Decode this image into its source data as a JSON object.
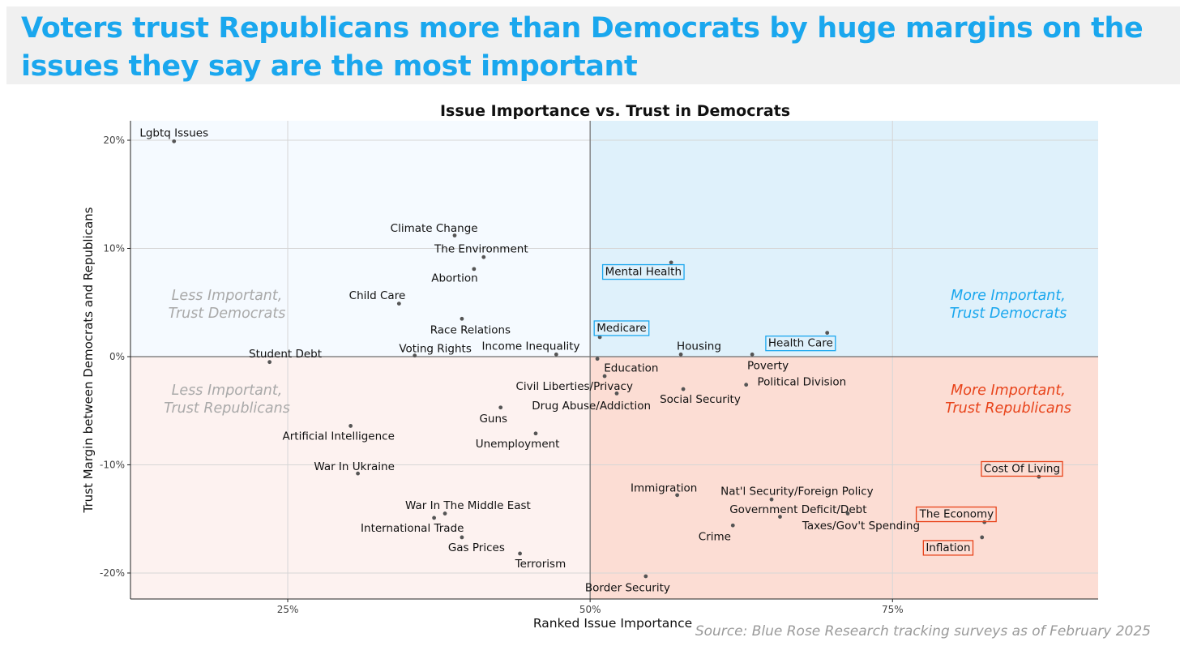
{
  "headline": "Voters trust Republicans more than Democrats by huge margins on the issues they say are the most important",
  "source": "Source: Blue Rose Research tracking surveys as of February 2025",
  "colors": {
    "headline": "#1aa7ee",
    "dem_accent": "#1aa7ee",
    "rep_accent": "#e8431a",
    "q_less_dem": "#f5faff",
    "q_more_dem": "#dff1fb",
    "q_less_rep": "#fdf2f0",
    "q_more_rep": "#fcddd4",
    "point": "#555555"
  },
  "chart_data": {
    "type": "scatter",
    "title": "Issue Importance vs. Trust in Democrats",
    "xlabel": "Ranked Issue Importance",
    "ylabel": "Trust Margin between Democrats and Republicans",
    "xlim": [
      0.12,
      0.92
    ],
    "ylim": [
      -0.224,
      0.218
    ],
    "x_ticks": [
      {
        "value": 0.25,
        "label": "25%"
      },
      {
        "value": 0.5,
        "label": "50%"
      },
      {
        "value": 0.75,
        "label": "75%"
      }
    ],
    "y_ticks": [
      {
        "value": 0.2,
        "label": "20%"
      },
      {
        "value": 0.1,
        "label": "10%"
      },
      {
        "value": 0.0,
        "label": "0%"
      },
      {
        "value": -0.1,
        "label": "-10%"
      },
      {
        "value": -0.2,
        "label": "-20%"
      }
    ],
    "grid": true,
    "quadrant_labels": [
      {
        "line1": "Less Important,",
        "line2": "Trust Democrats",
        "position": "left-upper",
        "style": "muted"
      },
      {
        "line1": "More Important,",
        "line2": "Trust Democrats",
        "position": "right-upper",
        "style": "dem"
      },
      {
        "line1": "Less Important,",
        "line2": "Trust Republicans",
        "position": "left-lower",
        "style": "muted"
      },
      {
        "line1": "More Important,",
        "line2": "Trust Republicans",
        "position": "right-lower",
        "style": "rep"
      }
    ],
    "points": [
      {
        "label": "Lgbtq Issues",
        "x": 0.156,
        "y": 0.199,
        "lx": 0.156,
        "ly": 0.207,
        "hl": ""
      },
      {
        "label": "Climate Change",
        "x": 0.388,
        "y": 0.112,
        "lx": 0.371,
        "ly": 0.119,
        "hl": ""
      },
      {
        "label": "The Environment",
        "x": 0.412,
        "y": 0.092,
        "lx": 0.41,
        "ly": 0.1,
        "hl": ""
      },
      {
        "label": "Abortion",
        "x": 0.404,
        "y": 0.081,
        "lx": 0.388,
        "ly": 0.073,
        "hl": ""
      },
      {
        "label": "Child Care",
        "x": 0.342,
        "y": 0.049,
        "lx": 0.324,
        "ly": 0.057,
        "hl": ""
      },
      {
        "label": "Race Relations",
        "x": 0.394,
        "y": 0.035,
        "lx": 0.401,
        "ly": 0.025,
        "hl": ""
      },
      {
        "label": "Mental Health",
        "x": 0.567,
        "y": 0.087,
        "lx": 0.544,
        "ly": 0.079,
        "hl": "dem"
      },
      {
        "label": "Medicare",
        "x": 0.508,
        "y": 0.018,
        "lx": 0.526,
        "ly": 0.027,
        "hl": "dem"
      },
      {
        "label": "Health Care",
        "x": 0.696,
        "y": 0.022,
        "lx": 0.674,
        "ly": 0.013,
        "hl": "dem"
      },
      {
        "label": "Student Debt",
        "x": 0.235,
        "y": -0.005,
        "lx": 0.248,
        "ly": 0.003,
        "hl": ""
      },
      {
        "label": "Voting Rights",
        "x": 0.355,
        "y": 0.001,
        "lx": 0.372,
        "ly": 0.008,
        "hl": ""
      },
      {
        "label": "Income Inequality",
        "x": 0.472,
        "y": 0.002,
        "lx": 0.451,
        "ly": 0.01,
        "hl": ""
      },
      {
        "label": "Housing",
        "x": 0.575,
        "y": 0.002,
        "lx": 0.59,
        "ly": 0.01,
        "hl": ""
      },
      {
        "label": "Poverty",
        "x": 0.634,
        "y": 0.002,
        "lx": 0.647,
        "ly": -0.008,
        "hl": ""
      },
      {
        "label": "Education",
        "x": 0.506,
        "y": -0.002,
        "lx": 0.534,
        "ly": -0.01,
        "hl": ""
      },
      {
        "label": "Political Division",
        "x": 0.629,
        "y": -0.026,
        "lx": 0.675,
        "ly": -0.023,
        "hl": ""
      },
      {
        "label": "Civil Liberties/Privacy",
        "x": 0.512,
        "y": -0.018,
        "lx": 0.487,
        "ly": -0.027,
        "hl": ""
      },
      {
        "label": "Social Security",
        "x": 0.577,
        "y": -0.03,
        "lx": 0.591,
        "ly": -0.039,
        "hl": ""
      },
      {
        "label": "Drug Abuse/Addiction",
        "x": 0.522,
        "y": -0.034,
        "lx": 0.501,
        "ly": -0.045,
        "hl": ""
      },
      {
        "label": "Guns",
        "x": 0.426,
        "y": -0.047,
        "lx": 0.42,
        "ly": -0.057,
        "hl": ""
      },
      {
        "label": "Unemployment",
        "x": 0.455,
        "y": -0.071,
        "lx": 0.44,
        "ly": -0.08,
        "hl": ""
      },
      {
        "label": "Artificial Intelligence",
        "x": 0.302,
        "y": -0.064,
        "lx": 0.292,
        "ly": -0.073,
        "hl": ""
      },
      {
        "label": "War In Ukraine",
        "x": 0.308,
        "y": -0.108,
        "lx": 0.305,
        "ly": -0.101,
        "hl": ""
      },
      {
        "label": "Immigration",
        "x": 0.572,
        "y": -0.128,
        "lx": 0.561,
        "ly": -0.121,
        "hl": ""
      },
      {
        "label": "Nat'l Security/Foreign Policy",
        "x": 0.65,
        "y": -0.132,
        "lx": 0.671,
        "ly": -0.124,
        "hl": ""
      },
      {
        "label": "Government Deficit/Debt",
        "x": 0.657,
        "y": -0.148,
        "lx": 0.672,
        "ly": -0.141,
        "hl": ""
      },
      {
        "label": "Taxes/Gov't Spending",
        "x": 0.713,
        "y": -0.145,
        "lx": 0.724,
        "ly": -0.156,
        "hl": ""
      },
      {
        "label": "Crime",
        "x": 0.618,
        "y": -0.156,
        "lx": 0.603,
        "ly": -0.166,
        "hl": ""
      },
      {
        "label": "War In The Middle East",
        "x": 0.38,
        "y": -0.145,
        "lx": 0.399,
        "ly": -0.137,
        "hl": ""
      },
      {
        "label": "International Trade",
        "x": 0.371,
        "y": -0.149,
        "lx": 0.353,
        "ly": -0.158,
        "hl": ""
      },
      {
        "label": "Gas Prices",
        "x": 0.394,
        "y": -0.167,
        "lx": 0.406,
        "ly": -0.176,
        "hl": ""
      },
      {
        "label": "Terrorism",
        "x": 0.442,
        "y": -0.182,
        "lx": 0.459,
        "ly": -0.191,
        "hl": ""
      },
      {
        "label": "Border Security",
        "x": 0.546,
        "y": -0.203,
        "lx": 0.531,
        "ly": -0.213,
        "hl": ""
      },
      {
        "label": "Cost Of Living",
        "x": 0.871,
        "y": -0.111,
        "lx": 0.857,
        "ly": -0.103,
        "hl": "rep"
      },
      {
        "label": "The Economy",
        "x": 0.826,
        "y": -0.153,
        "lx": 0.803,
        "ly": -0.145,
        "hl": "rep"
      },
      {
        "label": "Inflation",
        "x": 0.824,
        "y": -0.167,
        "lx": 0.796,
        "ly": -0.176,
        "hl": "rep"
      }
    ]
  }
}
